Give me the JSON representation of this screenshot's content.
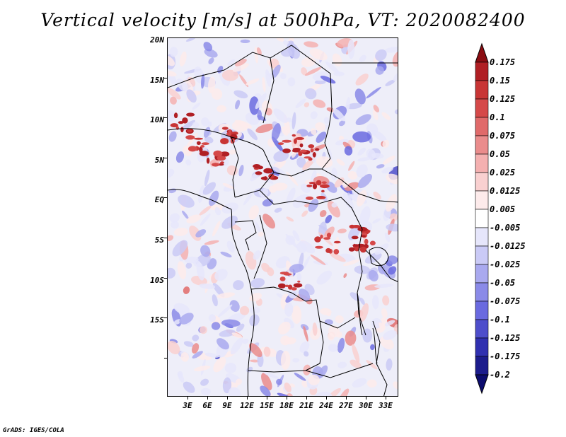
{
  "title": "Vertical velocity [m/s] at 500hPa, VT: 2020082400",
  "credit": "GrADS: IGES/COLA",
  "map": {
    "variable": "Vertical velocity",
    "units": "m/s",
    "level": "500hPa",
    "valid_time": "2020082400",
    "lat_labels": [
      "20N",
      "15N",
      "10N",
      "5N",
      "EQ",
      "5S",
      "10S",
      "15S"
    ],
    "lon_labels": [
      "3E",
      "6E",
      "9E",
      "12E",
      "15E",
      "18E",
      "21E",
      "24E",
      "27E",
      "30E",
      "33E"
    ],
    "background_color": "#f4f4fb",
    "coastline_color": "#000000"
  },
  "colorbar": {
    "levels": [
      "0.175",
      "0.15",
      "0.125",
      "0.1",
      "0.075",
      "0.05",
      "0.025",
      "0.0125",
      "0.005",
      "-0.005",
      "-0.0125",
      "-0.025",
      "-0.05",
      "-0.075",
      "-0.1",
      "-0.125",
      "-0.175",
      "-0.2"
    ],
    "colors": [
      "#8b0d12",
      "#b01f24",
      "#c83535",
      "#d54949",
      "#e06a6a",
      "#ea8c8c",
      "#f4b0b0",
      "#f9d0d0",
      "#fdebeb",
      "#ffffff",
      "#e6e6fb",
      "#cacaf6",
      "#a9a9ef",
      "#8a8ae8",
      "#6a6ae0",
      "#4e4ecb",
      "#3030b0",
      "#1c1c8c",
      "#0c0c6e"
    ]
  }
}
